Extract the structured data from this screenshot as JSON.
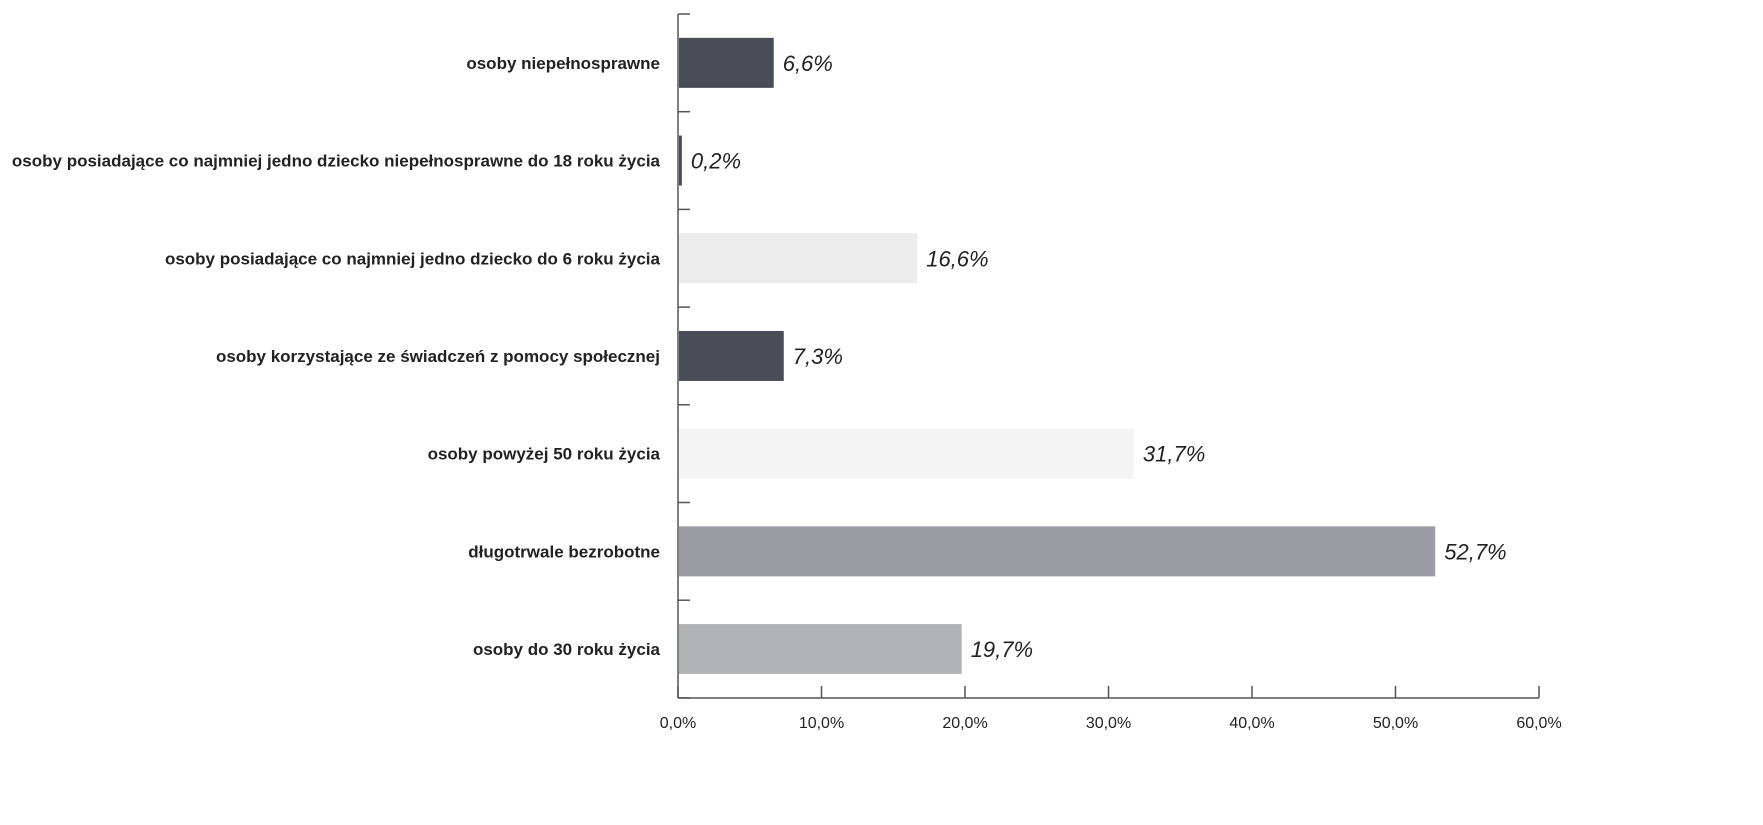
{
  "chart_data": {
    "type": "bar",
    "orientation": "horizontal",
    "categories": [
      "osoby niepełnosprawne",
      "osoby posiadające co najmniej jedno dziecko niepełnosprawne do 18 roku życia",
      "osoby posiadające co najmniej jedno dziecko do 6 roku życia",
      "osoby korzystające ze świadczeń z pomocy społecznej",
      "osoby powyżej 50 roku życia",
      "długotrwale bezrobotne",
      "osoby do 30 roku życia"
    ],
    "values": [
      6.6,
      0.2,
      16.6,
      7.3,
      31.7,
      52.7,
      19.7
    ],
    "value_labels": [
      "6,6%",
      "0,2%",
      "16,6%",
      "7,3%",
      "31,7%",
      "52,7%",
      "19,7%"
    ],
    "colors": [
      "#4a4d55",
      "#4a4d55",
      "#ececec",
      "#4a4d55",
      "#f4f4f4",
      "#9a9ba3",
      "#b2b3b5"
    ],
    "x_ticks": [
      "0,0%",
      "10,0%",
      "20,0%",
      "30,0%",
      "40,0%",
      "50,0%",
      "60,0%"
    ],
    "xlim": [
      0,
      60
    ],
    "title": "",
    "xlabel": "",
    "ylabel": "",
    "grid": false,
    "legend": "none"
  }
}
